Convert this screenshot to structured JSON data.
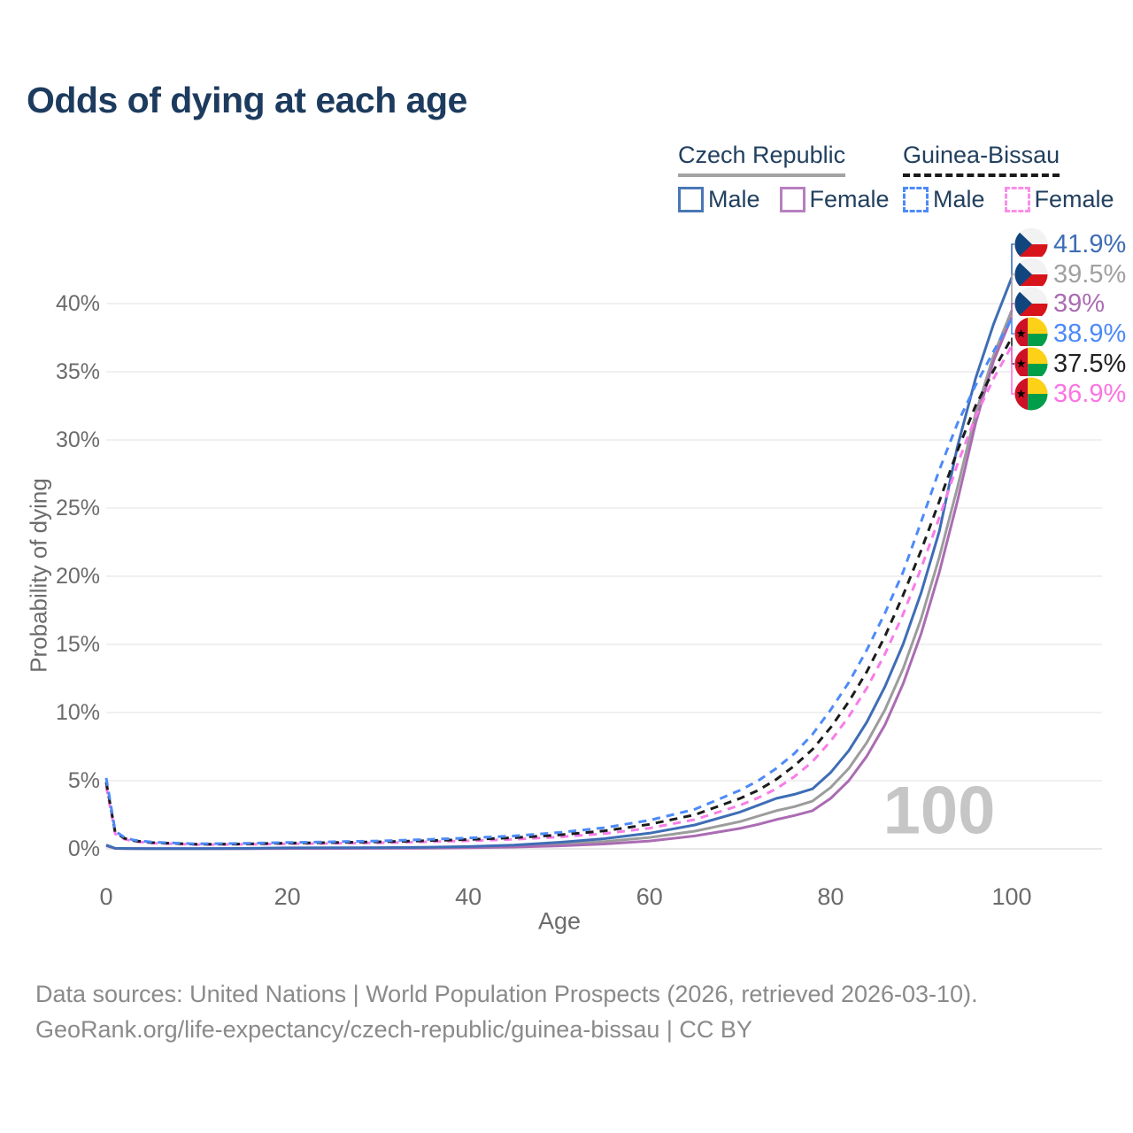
{
  "title": "Odds of dying at each age",
  "legend": {
    "groups": [
      {
        "label": "Czech Republic",
        "line_style": "solid",
        "underline_color": "#a3a3a3",
        "items": [
          {
            "label": "Male",
            "color": "#4a77b6"
          },
          {
            "label": "Female",
            "color": "#b77fc0"
          }
        ]
      },
      {
        "label": "Guinea-Bissau",
        "line_style": "dashed",
        "underline_color": "#1a1a1a",
        "items": [
          {
            "label": "Male",
            "color": "#4d8af8"
          },
          {
            "label": "Female",
            "color": "#f98fe8"
          }
        ]
      }
    ]
  },
  "watermark": "100",
  "footer": {
    "line1": "Data sources: United Nations | World Population Prospects (2026, retrieved 2026-03-10).",
    "line2": "GeoRank.org/life-expectancy/czech-republic/guinea-bissau | CC BY"
  },
  "chart_data": {
    "type": "line",
    "title": "Odds of dying at each age",
    "xlabel": "Age",
    "ylabel": "Probability of dying",
    "xlim": [
      0,
      100
    ],
    "ylim_percent": [
      0,
      44
    ],
    "grid": "horizontal",
    "legend_position": "top-right",
    "xticks": [
      "0",
      "20",
      "40",
      "60",
      "80",
      "100"
    ],
    "xtick_values": [
      0,
      20,
      40,
      60,
      80,
      100
    ],
    "yticks": [
      "0%",
      "5%",
      "10%",
      "15%",
      "20%",
      "25%",
      "30%",
      "35%",
      "40%"
    ],
    "ytick_values": [
      0,
      5,
      10,
      15,
      20,
      25,
      30,
      35,
      40
    ],
    "ages": [
      0,
      1,
      2,
      3,
      5,
      10,
      15,
      20,
      25,
      30,
      35,
      40,
      45,
      50,
      55,
      60,
      65,
      70,
      72,
      74,
      76,
      78,
      80,
      82,
      84,
      86,
      88,
      90,
      92,
      94,
      96,
      98,
      100
    ],
    "series": [
      {
        "id": "czech-male",
        "country": "Czech Republic",
        "sex": "Male",
        "color": "#3e6db5",
        "dash": "solid",
        "end_value_percent": 41.9,
        "values": [
          0.28,
          0.04,
          0.03,
          0.025,
          0.02,
          0.015,
          0.03,
          0.07,
          0.08,
          0.09,
          0.12,
          0.17,
          0.28,
          0.48,
          0.75,
          1.15,
          1.75,
          2.7,
          3.2,
          3.7,
          4.0,
          4.4,
          5.6,
          7.2,
          9.3,
          11.9,
          15.0,
          18.8,
          23.3,
          29.5,
          34.5,
          38.5,
          41.9
        ]
      },
      {
        "id": "czech-average",
        "country": "Czech Republic",
        "sex": "",
        "color": "#9c9c9c",
        "dash": "solid",
        "end_value_percent": 39.5,
        "values": [
          0.25,
          0.035,
          0.025,
          0.02,
          0.016,
          0.012,
          0.022,
          0.045,
          0.055,
          0.065,
          0.085,
          0.12,
          0.2,
          0.33,
          0.53,
          0.84,
          1.3,
          2.0,
          2.4,
          2.8,
          3.1,
          3.5,
          4.5,
          5.9,
          7.8,
          10.2,
          13.2,
          16.9,
          21.4,
          26.5,
          31.9,
          36.2,
          39.5
        ]
      },
      {
        "id": "czech-female",
        "country": "Czech Republic",
        "sex": "Female",
        "color": "#ab6cb3",
        "dash": "solid",
        "end_value_percent": 39.0,
        "values": [
          0.22,
          0.03,
          0.02,
          0.018,
          0.014,
          0.01,
          0.016,
          0.028,
          0.033,
          0.04,
          0.055,
          0.08,
          0.13,
          0.22,
          0.36,
          0.58,
          0.95,
          1.5,
          1.8,
          2.15,
          2.45,
          2.8,
          3.7,
          5.0,
          6.8,
          9.1,
          12.1,
          15.8,
          20.3,
          25.5,
          31.2,
          35.8,
          39.0
        ]
      },
      {
        "id": "gb-female",
        "country": "Guinea-Bissau",
        "sex": "Female",
        "color": "#f87ce8",
        "dash": "dashed",
        "end_value_percent": 36.9,
        "values": [
          4.6,
          1.1,
          0.72,
          0.55,
          0.42,
          0.31,
          0.33,
          0.37,
          0.4,
          0.44,
          0.51,
          0.59,
          0.7,
          0.87,
          1.12,
          1.52,
          2.15,
          3.2,
          3.75,
          4.4,
          5.3,
          6.4,
          7.9,
          9.7,
          11.8,
          14.3,
          17.2,
          20.6,
          24.3,
          28.2,
          31.7,
          34.5,
          36.9
        ]
      },
      {
        "id": "gb-average",
        "country": "Guinea-Bissau",
        "sex": "",
        "color": "#1c1c1c",
        "dash": "dashed",
        "end_value_percent": 37.5,
        "values": [
          4.9,
          1.2,
          0.78,
          0.6,
          0.46,
          0.34,
          0.36,
          0.42,
          0.46,
          0.51,
          0.59,
          0.69,
          0.82,
          1.02,
          1.32,
          1.8,
          2.5,
          3.7,
          4.3,
          5.1,
          6.1,
          7.3,
          8.9,
          10.8,
          13.0,
          15.6,
          18.6,
          21.9,
          25.5,
          29.2,
          32.5,
          35.1,
          37.5
        ]
      },
      {
        "id": "gb-male",
        "country": "Guinea-Bissau",
        "sex": "Male",
        "color": "#4d8af8",
        "dash": "dashed",
        "end_value_percent": 38.9,
        "values": [
          5.2,
          1.3,
          0.85,
          0.65,
          0.5,
          0.37,
          0.4,
          0.47,
          0.52,
          0.58,
          0.68,
          0.8,
          0.95,
          1.2,
          1.55,
          2.1,
          2.9,
          4.3,
          5.0,
          5.9,
          7.0,
          8.4,
          10.2,
          12.2,
          14.6,
          17.3,
          20.3,
          24.0,
          27.8,
          31.2,
          34.0,
          36.5,
          38.9
        ]
      }
    ],
    "end_labels": [
      {
        "label": "41.9%",
        "series_id": "czech-male",
        "color": "#3e6db5",
        "flag": "czech-republic-flag"
      },
      {
        "label": "39.5%",
        "series_id": "czech-average",
        "color": "#a0a0a0",
        "flag": "czech-republic-flag"
      },
      {
        "label": "39%",
        "series_id": "czech-female",
        "color": "#ab6cb3",
        "flag": "czech-republic-flag"
      },
      {
        "label": "38.9%",
        "series_id": "gb-male",
        "color": "#4d8af8",
        "flag": "guinea-bissau-flag"
      },
      {
        "label": "37.5%",
        "series_id": "gb-average",
        "color": "#222222",
        "flag": "guinea-bissau-flag"
      },
      {
        "label": "36.9%",
        "series_id": "gb-female",
        "color": "#fd74e2",
        "flag": "guinea-bissau-flag"
      }
    ]
  }
}
